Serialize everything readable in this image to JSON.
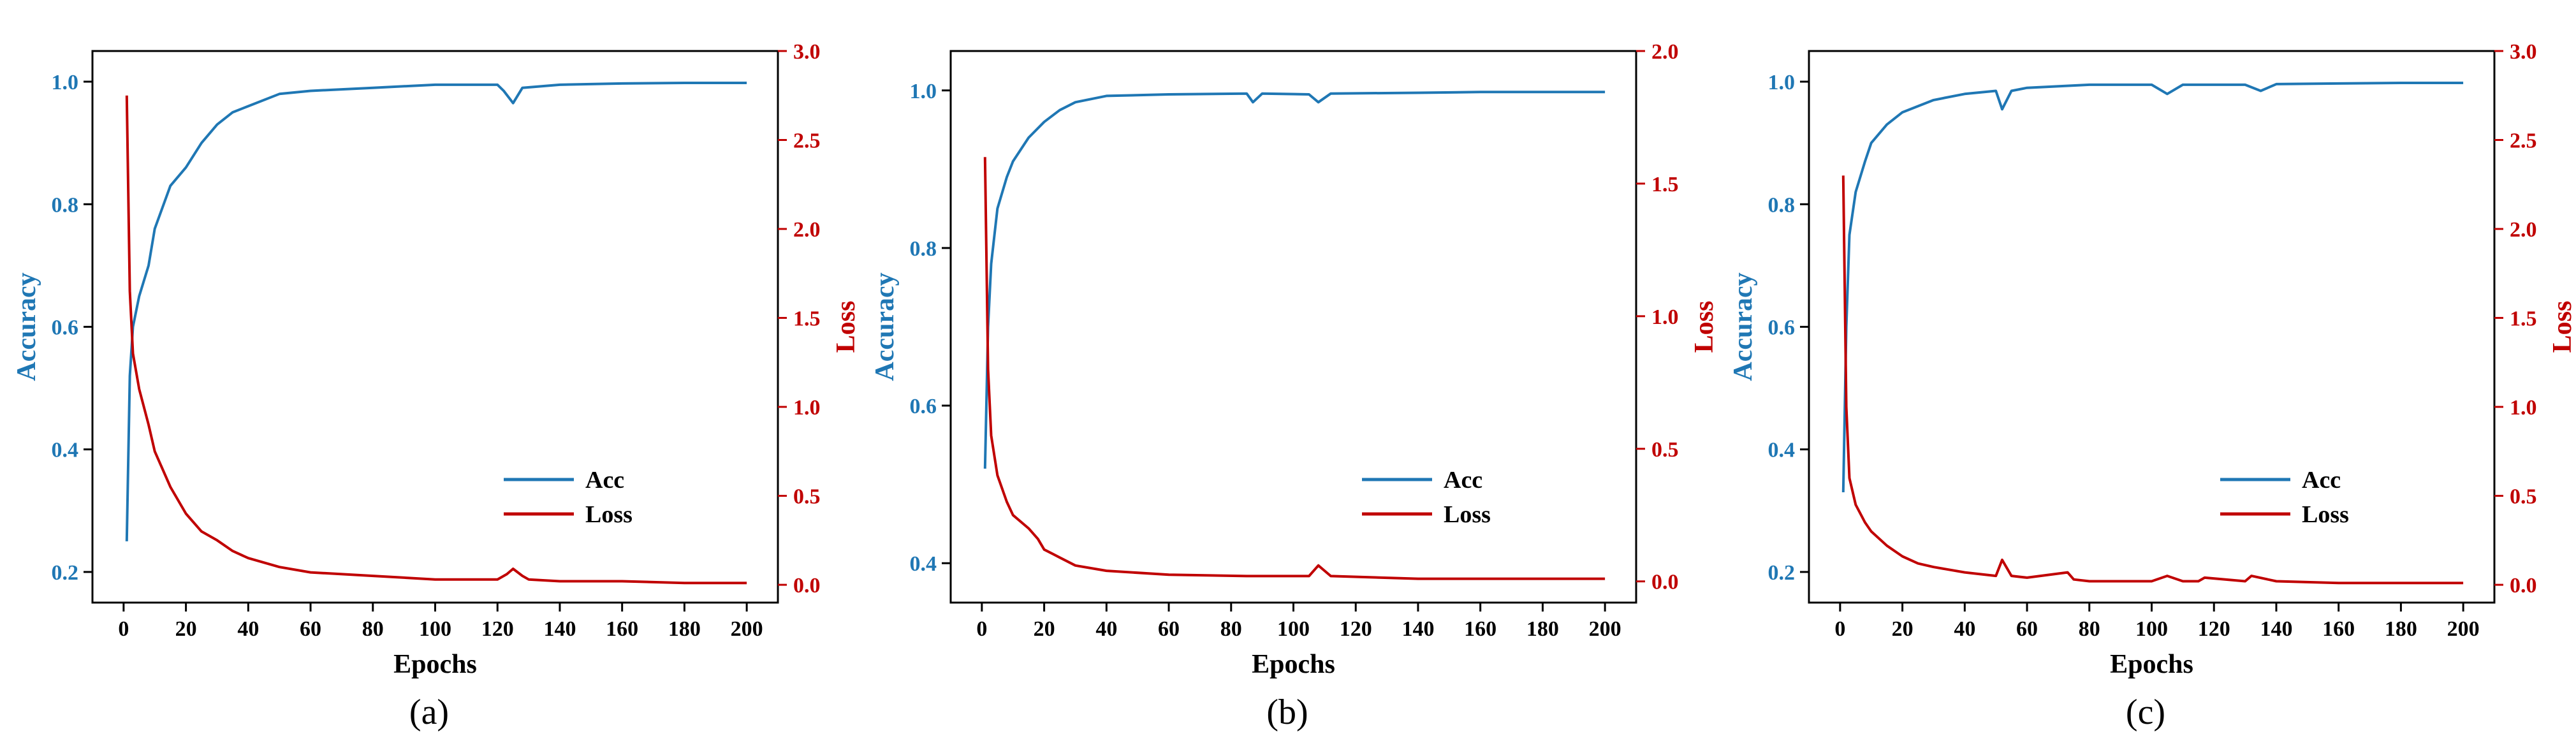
{
  "colors": {
    "acc": "#1f77b4",
    "loss": "#c00000",
    "axis": "#000000"
  },
  "chart_data": [
    {
      "type": "line",
      "caption": "(a)",
      "xlabel": "Epochs",
      "ylabel_left": "Accuracy",
      "ylabel_right": "Loss",
      "xlim": [
        -10,
        210
      ],
      "xticks": [
        0,
        20,
        40,
        60,
        80,
        100,
        120,
        140,
        160,
        180,
        200
      ],
      "y_left_lim": [
        0.15,
        1.05
      ],
      "y_left_ticks": [
        "0.2",
        "0.4",
        "0.6",
        "0.8",
        "1.0"
      ],
      "y_right_lim": [
        -0.1,
        3.0
      ],
      "y_right_ticks": [
        "0.0",
        "0.5",
        "1.0",
        "1.5",
        "2.0",
        "2.5",
        "3.0"
      ],
      "legend": [
        "Acc",
        "Loss"
      ],
      "series": [
        {
          "name": "Acc",
          "axis": "left",
          "x": [
            1,
            2,
            3,
            5,
            8,
            10,
            15,
            20,
            25,
            30,
            35,
            40,
            50,
            60,
            80,
            100,
            120,
            122,
            125,
            128,
            140,
            160,
            180,
            200
          ],
          "values": [
            0.25,
            0.52,
            0.6,
            0.65,
            0.7,
            0.76,
            0.83,
            0.86,
            0.9,
            0.93,
            0.95,
            0.96,
            0.98,
            0.985,
            0.99,
            0.995,
            0.995,
            0.985,
            0.965,
            0.99,
            0.995,
            0.997,
            0.998,
            0.998
          ]
        },
        {
          "name": "Loss",
          "axis": "right",
          "x": [
            1,
            2,
            3,
            5,
            8,
            10,
            15,
            20,
            25,
            30,
            35,
            40,
            50,
            60,
            80,
            100,
            120,
            123,
            125,
            128,
            130,
            140,
            160,
            180,
            200
          ],
          "values": [
            2.75,
            1.65,
            1.3,
            1.1,
            0.9,
            0.75,
            0.55,
            0.4,
            0.3,
            0.25,
            0.19,
            0.15,
            0.1,
            0.07,
            0.05,
            0.03,
            0.03,
            0.06,
            0.09,
            0.05,
            0.03,
            0.02,
            0.02,
            0.01,
            0.01
          ]
        }
      ]
    },
    {
      "type": "line",
      "caption": "(b)",
      "xlabel": "Epochs",
      "ylabel_left": "Accuracy",
      "ylabel_right": "Loss",
      "xlim": [
        -10,
        210
      ],
      "xticks": [
        0,
        20,
        40,
        60,
        80,
        100,
        120,
        140,
        160,
        180,
        200
      ],
      "y_left_lim": [
        0.35,
        1.05
      ],
      "y_left_ticks": [
        "0.4",
        "0.6",
        "0.8",
        "1.0"
      ],
      "y_right_lim": [
        -0.08,
        2.0
      ],
      "y_right_ticks": [
        "0.0",
        "0.5",
        "1.0",
        "1.5",
        "2.0"
      ],
      "legend": [
        "Acc",
        "Loss"
      ],
      "series": [
        {
          "name": "Acc",
          "axis": "left",
          "x": [
            1,
            2,
            3,
            5,
            8,
            10,
            15,
            20,
            25,
            30,
            40,
            60,
            85,
            87,
            90,
            105,
            108,
            112,
            140,
            160,
            180,
            200
          ],
          "values": [
            0.52,
            0.7,
            0.78,
            0.85,
            0.89,
            0.91,
            0.94,
            0.96,
            0.975,
            0.985,
            0.993,
            0.995,
            0.996,
            0.985,
            0.996,
            0.995,
            0.985,
            0.996,
            0.997,
            0.998,
            0.998,
            0.998
          ]
        },
        {
          "name": "Loss",
          "axis": "right",
          "x": [
            1,
            2,
            3,
            5,
            8,
            10,
            15,
            18,
            20,
            25,
            30,
            40,
            60,
            85,
            90,
            105,
            108,
            112,
            140,
            160,
            180,
            200
          ],
          "values": [
            1.6,
            0.8,
            0.55,
            0.4,
            0.3,
            0.25,
            0.2,
            0.16,
            0.12,
            0.09,
            0.06,
            0.04,
            0.025,
            0.02,
            0.02,
            0.02,
            0.06,
            0.02,
            0.01,
            0.01,
            0.01,
            0.01
          ]
        }
      ]
    },
    {
      "type": "line",
      "caption": "(c)",
      "xlabel": "Epochs",
      "ylabel_left": "Accuracy",
      "ylabel_right": "Loss",
      "xlim": [
        -10,
        210
      ],
      "xticks": [
        0,
        20,
        40,
        60,
        80,
        100,
        120,
        140,
        160,
        180,
        200
      ],
      "y_left_lim": [
        0.15,
        1.05
      ],
      "y_left_ticks": [
        "0.2",
        "0.4",
        "0.6",
        "0.8",
        "1.0"
      ],
      "y_right_lim": [
        -0.1,
        3.0
      ],
      "y_right_ticks": [
        "0.0",
        "0.5",
        "1.0",
        "1.5",
        "2.0",
        "2.5",
        "3.0"
      ],
      "legend": [
        "Acc",
        "Loss"
      ],
      "series": [
        {
          "name": "Acc",
          "axis": "left",
          "x": [
            1,
            2,
            3,
            5,
            8,
            10,
            15,
            20,
            25,
            30,
            40,
            50,
            52,
            55,
            60,
            80,
            100,
            105,
            110,
            130,
            135,
            140,
            160,
            180,
            200
          ],
          "values": [
            0.33,
            0.6,
            0.75,
            0.82,
            0.87,
            0.9,
            0.93,
            0.95,
            0.96,
            0.97,
            0.98,
            0.985,
            0.955,
            0.985,
            0.99,
            0.995,
            0.995,
            0.98,
            0.995,
            0.995,
            0.985,
            0.996,
            0.997,
            0.998,
            0.998
          ]
        },
        {
          "name": "Loss",
          "axis": "right",
          "x": [
            1,
            2,
            3,
            5,
            8,
            10,
            15,
            20,
            25,
            30,
            40,
            50,
            52,
            55,
            60,
            73,
            75,
            80,
            100,
            105,
            110,
            115,
            117,
            130,
            132,
            140,
            160,
            180,
            200
          ],
          "values": [
            2.3,
            1.0,
            0.6,
            0.45,
            0.35,
            0.3,
            0.22,
            0.16,
            0.12,
            0.1,
            0.07,
            0.05,
            0.14,
            0.05,
            0.04,
            0.07,
            0.03,
            0.02,
            0.02,
            0.05,
            0.02,
            0.02,
            0.04,
            0.02,
            0.05,
            0.02,
            0.01,
            0.01,
            0.01
          ]
        }
      ]
    }
  ]
}
